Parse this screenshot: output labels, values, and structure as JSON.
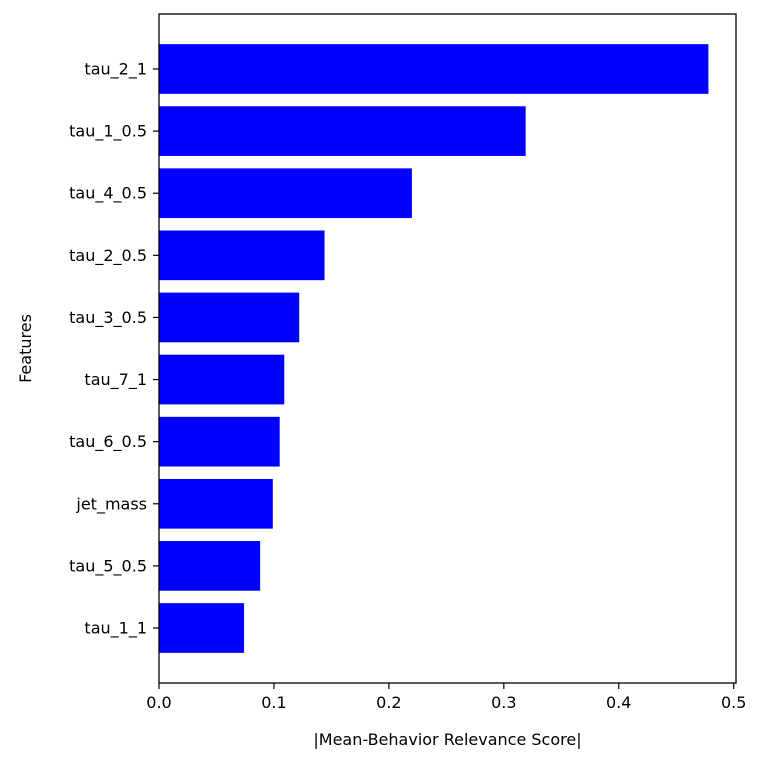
{
  "chart_data": {
    "type": "bar",
    "orientation": "horizontal",
    "title": "",
    "xlabel": "|Mean-Behavior Relevance Score|",
    "ylabel": "Features",
    "xlim": [
      0,
      0.502
    ],
    "xticks": [
      0.0,
      0.1,
      0.2,
      0.3,
      0.4,
      0.5
    ],
    "xtick_labels": [
      "0.0",
      "0.1",
      "0.2",
      "0.3",
      "0.4",
      "0.5"
    ],
    "grid": false,
    "bar_color": "#0000ff",
    "categories": [
      "tau_2_1",
      "tau_1_0.5",
      "tau_4_0.5",
      "tau_2_0.5",
      "tau_3_0.5",
      "tau_7_1",
      "tau_6_0.5",
      "jet_mass",
      "tau_5_0.5",
      "tau_1_1"
    ],
    "values": [
      0.478,
      0.319,
      0.22,
      0.144,
      0.122,
      0.109,
      0.105,
      0.099,
      0.088,
      0.074
    ]
  }
}
